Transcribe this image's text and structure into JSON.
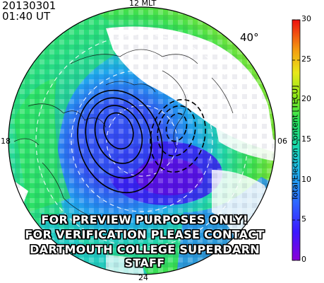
{
  "header": {
    "date": "20130301",
    "time": "01:40 UT"
  },
  "map": {
    "latitude_label": "40°",
    "mlt_labels": {
      "top": "12 MLT",
      "left": "18",
      "right": "06",
      "bottom": "24"
    }
  },
  "colorbar": {
    "title": "Total Electron Content [TECU]",
    "ticks": [
      "0",
      "5",
      "10",
      "15",
      "20",
      "25",
      "30"
    ],
    "min": 0,
    "max": 30
  },
  "watermark": {
    "line1": "FOR PREVIEW PURPOSES ONLY!",
    "line2": "FOR VERIFICATION PLEASE CONTACT",
    "line3": "DARTMOUTH COLLEGE SUPERDARN STAFF"
  }
}
